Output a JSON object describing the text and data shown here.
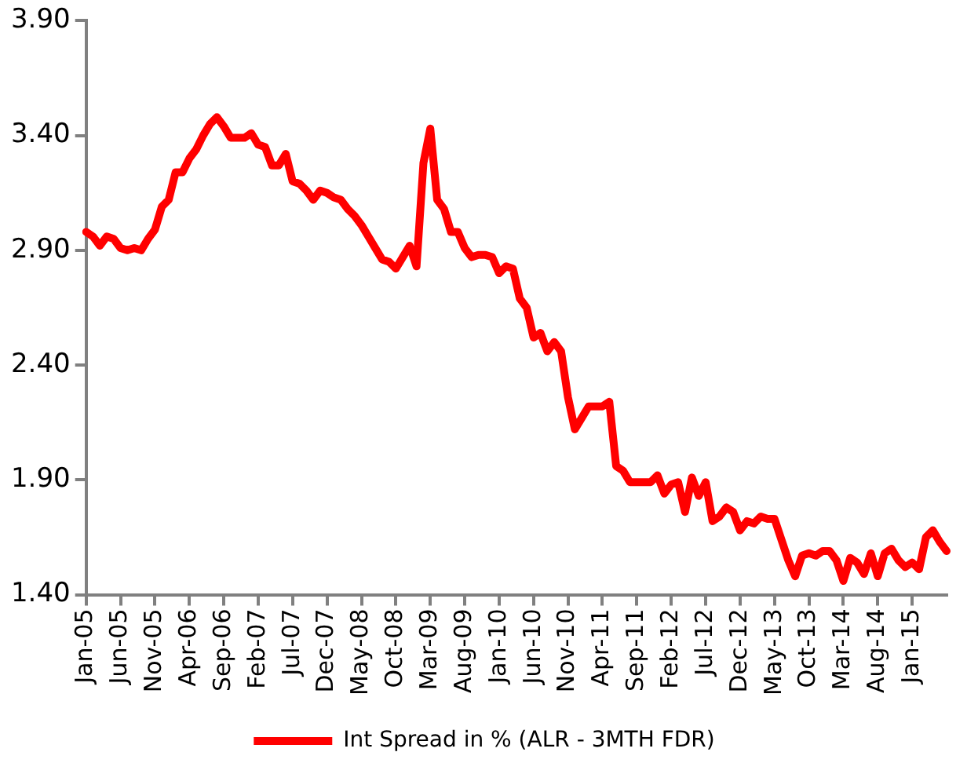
{
  "chart_data": {
    "type": "line",
    "categories": [
      "Jan-05",
      null,
      null,
      null,
      null,
      "Jun-05",
      null,
      null,
      null,
      null,
      "Nov-05",
      null,
      null,
      null,
      null,
      "Apr-06",
      null,
      null,
      null,
      null,
      "Sep-06",
      null,
      null,
      null,
      null,
      "Feb-07",
      null,
      null,
      null,
      null,
      "Jul-07",
      null,
      null,
      null,
      null,
      "Dec-07",
      null,
      null,
      null,
      null,
      "May-08",
      null,
      null,
      null,
      null,
      "Oct-08",
      null,
      null,
      null,
      null,
      "Mar-09",
      null,
      null,
      null,
      null,
      "Aug-09",
      null,
      null,
      null,
      null,
      "Jan-10",
      null,
      null,
      null,
      null,
      "Jun-10",
      null,
      null,
      null,
      null,
      "Nov-10",
      null,
      null,
      null,
      null,
      "Apr-11",
      null,
      null,
      null,
      null,
      "Sep-11",
      null,
      null,
      null,
      null,
      "Feb-12",
      null,
      null,
      null,
      null,
      "Jul-12",
      null,
      null,
      null,
      null,
      "Dec-12",
      null,
      null,
      null,
      null,
      "May-13",
      null,
      null,
      null,
      null,
      "Oct-13",
      null,
      null,
      null,
      null,
      "Mar-14",
      null,
      null,
      null,
      null,
      "Aug-14",
      null,
      null,
      null,
      null,
      "Jan-15",
      null,
      null,
      null,
      null,
      null
    ],
    "series": [
      {
        "name": "Int Spread in % (ALR - 3MTH FDR)",
        "color": "#ff0000",
        "values": [
          2.98,
          2.96,
          2.92,
          2.96,
          2.95,
          2.91,
          2.9,
          2.91,
          2.9,
          2.95,
          2.99,
          3.09,
          3.12,
          3.24,
          3.24,
          3.3,
          3.34,
          3.4,
          3.45,
          3.48,
          3.44,
          3.39,
          3.39,
          3.39,
          3.41,
          3.36,
          3.35,
          3.27,
          3.27,
          3.32,
          3.2,
          3.19,
          3.16,
          3.12,
          3.16,
          3.15,
          3.13,
          3.12,
          3.08,
          3.05,
          3.01,
          2.96,
          2.91,
          2.86,
          2.85,
          2.82,
          2.87,
          2.92,
          2.83,
          3.28,
          3.43,
          3.12,
          3.08,
          2.98,
          2.98,
          2.91,
          2.87,
          2.88,
          2.88,
          2.87,
          2.8,
          2.83,
          2.82,
          2.69,
          2.65,
          2.52,
          2.54,
          2.46,
          2.5,
          2.46,
          2.26,
          2.12,
          2.17,
          2.22,
          2.22,
          2.22,
          2.24,
          1.96,
          1.94,
          1.89,
          1.89,
          1.89,
          1.89,
          1.92,
          1.84,
          1.88,
          1.89,
          1.76,
          1.91,
          1.83,
          1.89,
          1.72,
          1.74,
          1.78,
          1.76,
          1.68,
          1.72,
          1.71,
          1.74,
          1.73,
          1.73,
          1.64,
          1.55,
          1.48,
          1.57,
          1.58,
          1.57,
          1.59,
          1.59,
          1.55,
          1.46,
          1.56,
          1.54,
          1.49,
          1.58,
          1.48,
          1.58,
          1.6,
          1.55,
          1.52,
          1.54,
          1.51,
          1.65,
          1.68,
          1.63,
          1.59
        ]
      }
    ],
    "ylim": [
      1.4,
      3.9
    ],
    "yticks": [
      {
        "value": 1.4,
        "label": "1.40"
      },
      {
        "value": 1.9,
        "label": "1.90"
      },
      {
        "value": 2.4,
        "label": "2.40"
      },
      {
        "value": 2.9,
        "label": "2.90"
      },
      {
        "value": 3.4,
        "label": "3.40"
      },
      {
        "value": 3.9,
        "label": "3.90"
      }
    ],
    "grid": false,
    "legend": "bottom",
    "marker": "none",
    "line_style": "solid"
  }
}
